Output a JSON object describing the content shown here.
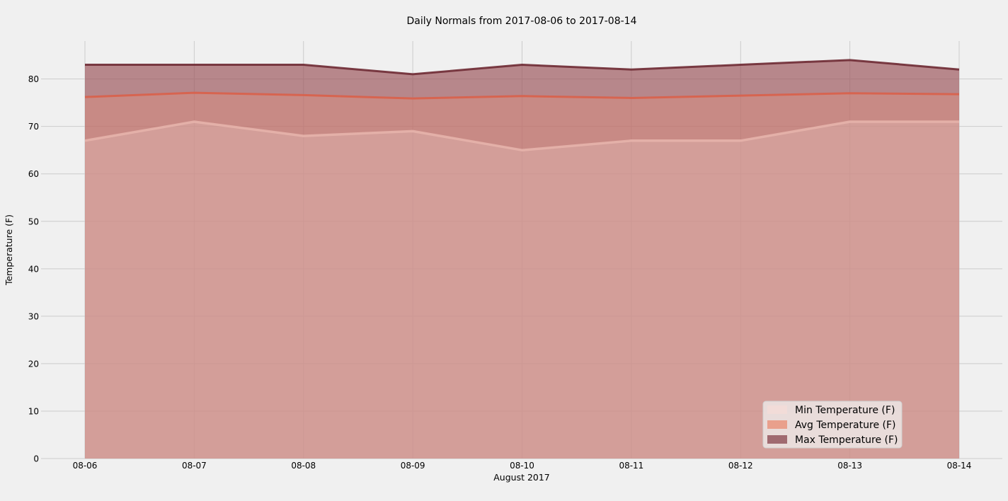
{
  "chart_data": {
    "type": "area",
    "title": "Daily Normals from 2017-08-06 to 2017-08-14",
    "xlabel": "August 2017",
    "ylabel": "Temperature (F)",
    "categories": [
      "08-06",
      "08-07",
      "08-08",
      "08-09",
      "08-10",
      "08-11",
      "08-12",
      "08-13",
      "08-14"
    ],
    "ylim": [
      0,
      88
    ],
    "yticks": [
      0,
      10,
      20,
      30,
      40,
      50,
      60,
      70,
      80
    ],
    "grid": true,
    "stacked": false,
    "legend_position": "lower-right",
    "series": [
      {
        "name": "Min Temperature (F)",
        "values": [
          67,
          71,
          68,
          69,
          65,
          67,
          67,
          71,
          71
        ],
        "color": "#f2dcd8",
        "line_color": "#e6b3ab"
      },
      {
        "name": "Avg Temperature (F)",
        "values": [
          76.2,
          77.1,
          76.6,
          75.9,
          76.4,
          76.0,
          76.5,
          77.0,
          76.8
        ],
        "color": "#e8907a",
        "line_color": "#d9604a"
      },
      {
        "name": "Max Temperature (F)",
        "values": [
          83,
          83,
          83,
          81,
          83,
          82,
          83,
          84,
          82
        ],
        "color": "#9e5a60",
        "line_color": "#6e2a33"
      }
    ]
  }
}
